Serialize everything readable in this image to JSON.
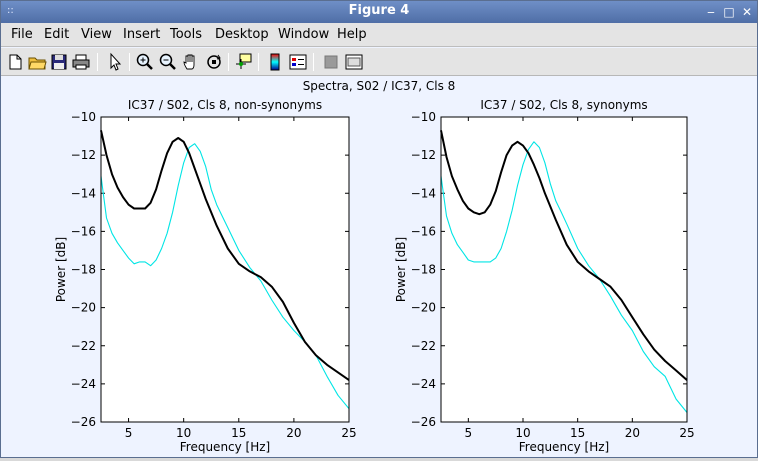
{
  "window": {
    "title": "Figure 4",
    "title_color": "#ffffff",
    "titlebar_color": "#5b7bb3"
  },
  "menubar": {
    "items": [
      {
        "label": "File"
      },
      {
        "label": "Edit"
      },
      {
        "label": "View"
      },
      {
        "label": "Insert"
      },
      {
        "label": "Tools"
      },
      {
        "label": "Desktop"
      },
      {
        "label": "Window"
      },
      {
        "label": "Help"
      }
    ]
  },
  "toolbar": {
    "icons": [
      "new-file-icon",
      "open-folder-icon",
      "save-icon",
      "print-icon",
      "pointer-icon",
      "zoom-in-icon",
      "zoom-out-icon",
      "pan-hand-icon",
      "rotate-3d-icon",
      "data-cursor-icon",
      "colorbar-icon",
      "legend-icon",
      "hide-plot-tools-icon",
      "show-plot-tools-icon"
    ]
  },
  "figure": {
    "suptitle": "Spectra, S02 / IC37, Cls 8",
    "colors": {
      "black_series": "#000000",
      "cyan_series": "#00e5e5",
      "axes_bg": "#ffffff",
      "figure_bg": "#eef3ff"
    }
  },
  "chart_data": [
    {
      "type": "line",
      "title": "IC37 / S02, Cls 8, non-synonyms",
      "xlabel": "Frequency [Hz]",
      "ylabel": "Power [dB]",
      "xlim": [
        2.5,
        25
      ],
      "ylim": [
        -26,
        -10
      ],
      "xticks": [
        5,
        10,
        15,
        20,
        25
      ],
      "yticks": [
        -10,
        -12,
        -14,
        -16,
        -18,
        -20,
        -22,
        -24,
        -26
      ],
      "grid": false,
      "series": [
        {
          "color": "#000000",
          "x": [
            2.5,
            3,
            3.5,
            4,
            4.5,
            5,
            5.5,
            6,
            6.5,
            7,
            7.5,
            8,
            8.5,
            9,
            9.5,
            10,
            10.5,
            11,
            11.5,
            12,
            13,
            14,
            15,
            16,
            17,
            18,
            19,
            20,
            21,
            22,
            23,
            24,
            25
          ],
          "y": [
            -10.7,
            -12.0,
            -13.0,
            -13.7,
            -14.2,
            -14.6,
            -14.8,
            -14.8,
            -14.8,
            -14.5,
            -13.8,
            -12.8,
            -11.9,
            -11.3,
            -11.1,
            -11.3,
            -11.9,
            -12.7,
            -13.5,
            -14.3,
            -15.7,
            -16.9,
            -17.7,
            -18.1,
            -18.4,
            -18.9,
            -19.7,
            -20.8,
            -21.8,
            -22.5,
            -23.0,
            -23.4,
            -23.8
          ]
        },
        {
          "color": "#00e5e5",
          "x": [
            2.5,
            3,
            3.5,
            4,
            4.5,
            5,
            5.5,
            6,
            6.5,
            7,
            7.5,
            8,
            8.5,
            9,
            9.5,
            10,
            10.5,
            11,
            11.5,
            12,
            12.5,
            13,
            13.5,
            14,
            15,
            16,
            17,
            18,
            19,
            20,
            21,
            22,
            23,
            24,
            25
          ],
          "y": [
            -13.1,
            -15.3,
            -16.1,
            -16.6,
            -17.0,
            -17.4,
            -17.7,
            -17.6,
            -17.6,
            -17.8,
            -17.5,
            -16.9,
            -16.1,
            -15.0,
            -13.6,
            -12.4,
            -11.6,
            -11.4,
            -11.8,
            -12.6,
            -13.8,
            -14.6,
            -15.2,
            -15.8,
            -17.0,
            -17.9,
            -18.6,
            -19.6,
            -20.5,
            -21.2,
            -21.8,
            -22.5,
            -23.6,
            -24.6,
            -25.3
          ]
        }
      ]
    },
    {
      "type": "line",
      "title": "IC37 / S02, Cls 8, synonyms",
      "xlabel": "Frequency [Hz]",
      "ylabel": "Power [dB]",
      "xlim": [
        2.5,
        25
      ],
      "ylim": [
        -26,
        -10
      ],
      "xticks": [
        5,
        10,
        15,
        20,
        25
      ],
      "yticks": [
        -10,
        -12,
        -14,
        -16,
        -18,
        -20,
        -22,
        -24,
        -26
      ],
      "grid": false,
      "series": [
        {
          "color": "#000000",
          "x": [
            2.5,
            3,
            3.5,
            4,
            4.5,
            5,
            5.5,
            6,
            6.5,
            7,
            7.5,
            8,
            8.5,
            9,
            9.5,
            10,
            10.5,
            11,
            11.5,
            12,
            13,
            14,
            15,
            16,
            17,
            18,
            19,
            20,
            21,
            22,
            23,
            24,
            25
          ],
          "y": [
            -10.7,
            -12.1,
            -13.1,
            -13.8,
            -14.4,
            -14.8,
            -15.0,
            -15.1,
            -15.0,
            -14.6,
            -13.9,
            -12.9,
            -12.0,
            -11.5,
            -11.3,
            -11.5,
            -11.9,
            -12.5,
            -13.2,
            -14.0,
            -15.4,
            -16.7,
            -17.6,
            -18.1,
            -18.5,
            -18.9,
            -19.6,
            -20.5,
            -21.4,
            -22.2,
            -22.8,
            -23.3,
            -23.8
          ]
        },
        {
          "color": "#00e5e5",
          "x": [
            2.5,
            3,
            3.5,
            4,
            4.5,
            5,
            5.5,
            6,
            6.5,
            7,
            7.5,
            8,
            8.5,
            9,
            9.5,
            10,
            10.5,
            11,
            11.5,
            12,
            12.5,
            13,
            13.5,
            14,
            15,
            16,
            17,
            18,
            19,
            20,
            21,
            22,
            23,
            24,
            25
          ],
          "y": [
            -13.1,
            -15.2,
            -16.1,
            -16.7,
            -17.1,
            -17.5,
            -17.6,
            -17.6,
            -17.6,
            -17.6,
            -17.4,
            -16.9,
            -16.0,
            -14.9,
            -13.6,
            -12.5,
            -11.7,
            -11.3,
            -11.6,
            -12.4,
            -13.5,
            -14.4,
            -15.0,
            -15.6,
            -16.9,
            -17.8,
            -18.5,
            -19.4,
            -20.4,
            -21.2,
            -22.3,
            -23.1,
            -23.6,
            -24.8,
            -25.5
          ]
        }
      ]
    }
  ]
}
